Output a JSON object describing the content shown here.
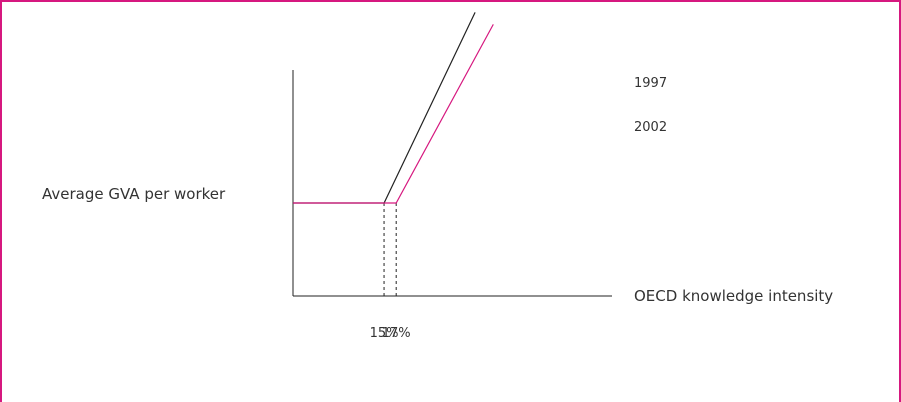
{
  "colors": {
    "frame": "#d6187f",
    "series_1997": "#222222",
    "series_2002": "#d6187f",
    "axis": "#222222"
  },
  "chart_data": {
    "type": "line",
    "xlabel": "OECD knowledge intensity",
    "ylabel": "Average GVA per worker",
    "grid": false,
    "x_ticks": [
      "15%",
      "17%"
    ],
    "threshold_markers": [
      {
        "series": "1997",
        "x": 15
      },
      {
        "series": "2002",
        "x": 17
      }
    ],
    "series": [
      {
        "name": "1997",
        "x": [
          0,
          15,
          30
        ],
        "y": [
          1,
          1,
          3.05
        ]
      },
      {
        "name": "2002",
        "x": [
          0,
          17,
          33
        ],
        "y": [
          1,
          1,
          2.92
        ]
      }
    ]
  }
}
